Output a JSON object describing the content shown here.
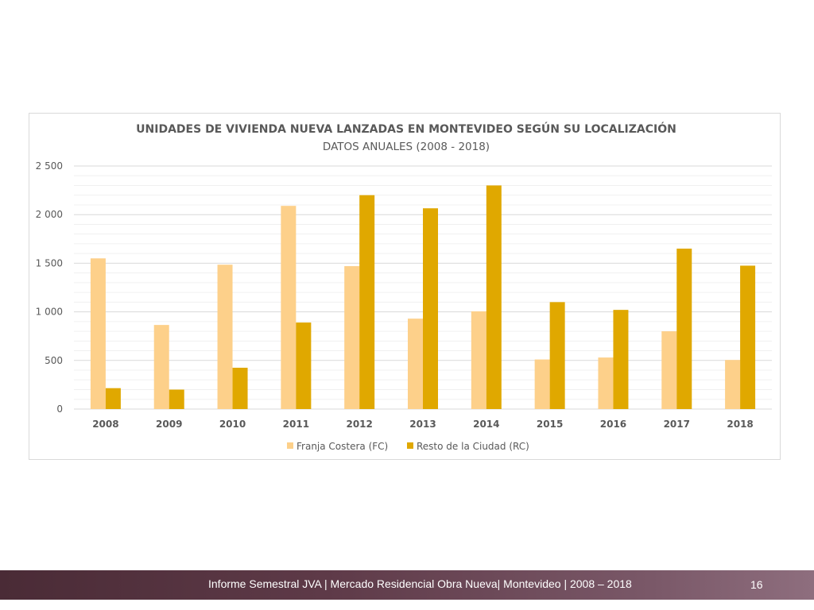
{
  "chart_data": {
    "type": "bar",
    "title": "UNIDADES DE VIVIENDA NUEVA LANZADAS EN MONTEVIDEO SEGÚN SU LOCALIZACIÓN",
    "subtitle": "DATOS ANUALES (2008 - 2018)",
    "xlabel": "",
    "ylabel": "",
    "categories": [
      "2008",
      "2009",
      "2010",
      "2011",
      "2012",
      "2013",
      "2014",
      "2015",
      "2016",
      "2017",
      "2018"
    ],
    "series": [
      {
        "name": "Franja Costera (FC)",
        "color": "#fdd08a",
        "values": [
          1550,
          865,
          1485,
          2090,
          1470,
          930,
          1005,
          510,
          530,
          800,
          505
        ]
      },
      {
        "name": "Resto de la Ciudad (RC)",
        "color": "#e0a800",
        "values": [
          215,
          200,
          425,
          890,
          2200,
          2065,
          2300,
          1100,
          1020,
          1650,
          1475
        ]
      }
    ],
    "ylim": [
      0,
      2500
    ],
    "yticks": [
      0,
      500,
      1000,
      1500,
      2000,
      2500
    ],
    "ytick_labels": [
      "0",
      "500",
      "1 000",
      "1 500",
      "2 000",
      "2 500"
    ],
    "grid": true,
    "legend_position": "bottom"
  },
  "footer": {
    "text": "Informe Semestral JVA | Mercado Residencial Obra Nueva| Montevideo | 2008 – 2018",
    "page_number": "16"
  }
}
